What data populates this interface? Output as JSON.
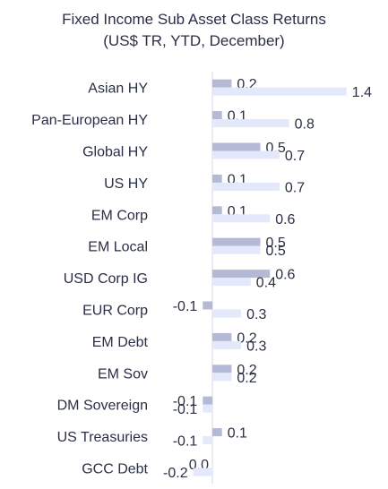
{
  "chart_data": {
    "type": "bar",
    "orientation": "horizontal",
    "title": "Fixed Income Sub Asset Class Returns",
    "subtitle": "(US$ TR, YTD, December)",
    "categories": [
      "Asian HY",
      "Pan-European HY",
      "Global HY",
      "US HY",
      "EM Corp",
      "EM Local",
      "USD Corp IG",
      "EUR Corp",
      "EM Debt",
      "EM Sov",
      "DM Sovereign",
      "US Treasuries",
      "GCC Debt"
    ],
    "series": [
      {
        "values": [
          0.2,
          0.1,
          0.5,
          0.1,
          0.1,
          0.5,
          0.6,
          -0.1,
          0.2,
          0.2,
          -0.1,
          0.1,
          0.0
        ]
      },
      {
        "values": [
          1.4,
          0.8,
          0.7,
          0.7,
          0.6,
          0.5,
          0.4,
          0.3,
          0.3,
          0.2,
          -0.1,
          -0.1,
          -0.2
        ]
      }
    ],
    "colors": [
      "#b4b9d6",
      "#e3e8fa"
    ],
    "label_color": "#2a2f45",
    "xlim": [
      -0.15,
      1.45
    ],
    "grid": false,
    "legend": "none"
  }
}
